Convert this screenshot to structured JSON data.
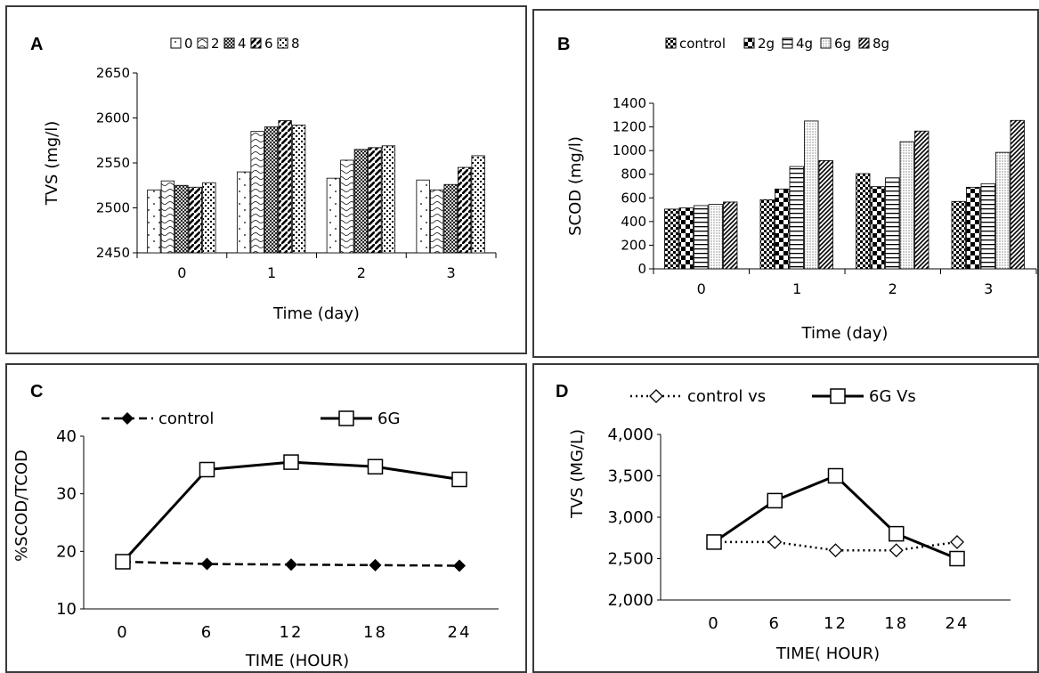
{
  "chart_data": [
    {
      "panel": "A",
      "type": "bar",
      "categories": [
        "0",
        "1",
        "2",
        "3"
      ],
      "series": [
        {
          "name": "0",
          "values": [
            2520,
            2540,
            2533,
            2531
          ]
        },
        {
          "name": "2",
          "values": [
            2530,
            2585,
            2553,
            2520
          ]
        },
        {
          "name": "4",
          "values": [
            2525,
            2590,
            2565,
            2526
          ]
        },
        {
          "name": "6",
          "values": [
            2523,
            2597,
            2567,
            2545
          ]
        },
        {
          "name": "8",
          "values": [
            2528,
            2592,
            2569,
            2558
          ]
        }
      ],
      "xlabel": "Time (day)",
      "ylabel": "TVS (mg/l)",
      "ylim": [
        2450,
        2650
      ],
      "yticks": [
        "2450",
        "2500",
        "2550",
        "2600",
        "2650"
      ],
      "legend_position": "top",
      "grid": false
    },
    {
      "panel": "B",
      "type": "bar",
      "categories": [
        "0",
        "1",
        "2",
        "3"
      ],
      "series": [
        {
          "name": "control",
          "values": [
            505,
            585,
            805,
            570
          ]
        },
        {
          "name": "2g",
          "values": [
            515,
            675,
            695,
            690
          ]
        },
        {
          "name": "4g",
          "values": [
            535,
            865,
            770,
            720
          ]
        },
        {
          "name": "6g",
          "values": [
            545,
            1250,
            1075,
            985
          ]
        },
        {
          "name": "8g",
          "values": [
            565,
            915,
            1165,
            1255
          ]
        }
      ],
      "xlabel": "Time (day)",
      "ylabel": "SCOD (mg/l)",
      "ylim": [
        0,
        1400
      ],
      "yticks": [
        "0",
        "200",
        "400",
        "600",
        "800",
        "1000",
        "1200",
        "1400"
      ],
      "legend_position": "top",
      "grid": false
    },
    {
      "panel": "C",
      "type": "line",
      "x": [
        0,
        6,
        12,
        18,
        24
      ],
      "xticks": [
        "0",
        "6",
        "12",
        "18",
        "24"
      ],
      "series": [
        {
          "name": "control",
          "values": [
            18.2,
            17.8,
            17.7,
            17.6,
            17.5
          ]
        },
        {
          "name": "6G",
          "values": [
            18.2,
            34.2,
            35.5,
            34.7,
            32.5
          ]
        }
      ],
      "xlabel": "TIME (HOUR)",
      "ylabel": "%SCOD/TCOD",
      "ylim": [
        10,
        40
      ],
      "yticks": [
        "10",
        "20",
        "30",
        "40"
      ],
      "legend_position": "top",
      "grid": false
    },
    {
      "panel": "D",
      "type": "line",
      "x": [
        0,
        6,
        12,
        18,
        24
      ],
      "xticks": [
        "0",
        "6",
        "12",
        "18",
        "24"
      ],
      "series": [
        {
          "name": "control vs",
          "values": [
            2700,
            2700,
            2600,
            2600,
            2700
          ]
        },
        {
          "name": "6G Vs",
          "values": [
            2700,
            3200,
            3500,
            2800,
            2500
          ]
        }
      ],
      "xlabel": "TIME( HOUR)",
      "ylabel": "TVS (MG/L)",
      "ylim": [
        2000,
        4000
      ],
      "yticks": [
        "2,000",
        "2,500",
        "3,000",
        "3,500",
        "4,000"
      ],
      "legend_position": "top",
      "grid": false
    }
  ]
}
